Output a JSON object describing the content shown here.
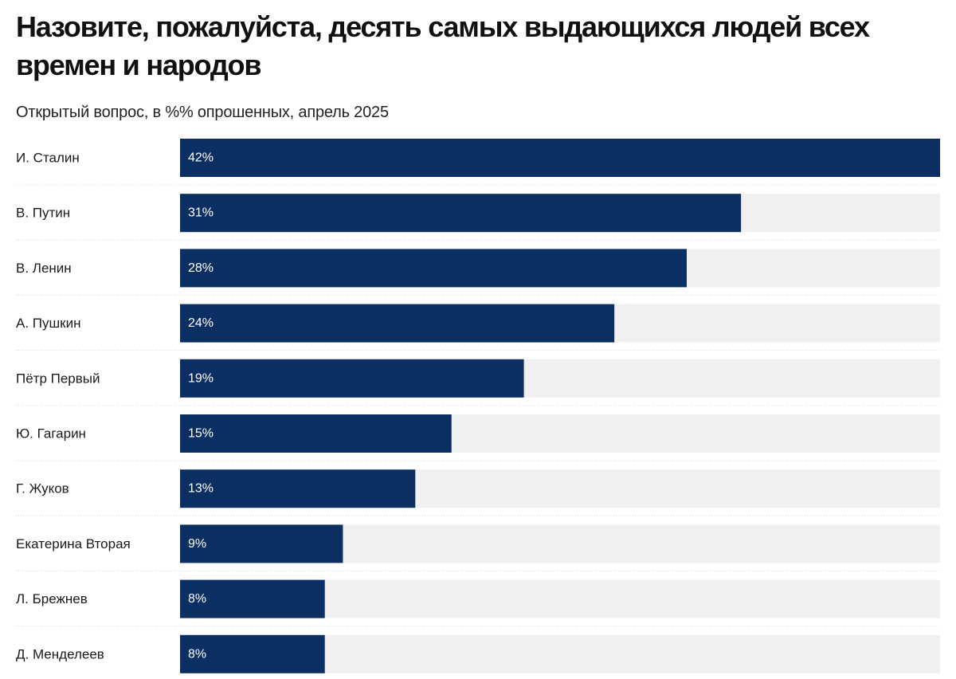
{
  "chart_data": {
    "type": "bar",
    "orientation": "horizontal",
    "title": "Назовите, пожалуйста, десять самых выдающихся людей всех времен и народов",
    "subtitle": "Открытый вопрос, в %% опрошенных, апрель 2025",
    "xlim": [
      0,
      42
    ],
    "value_suffix": "%",
    "categories": [
      "И. Сталин",
      "В. Путин",
      "В. Ленин",
      "А. Пушкин",
      "Пётр Первый",
      "Ю. Гагарин",
      "Г. Жуков",
      "Екатерина Вторая",
      "Л. Брежнев",
      "Д. Менделеев"
    ],
    "values": [
      42,
      31,
      28,
      24,
      19,
      15,
      13,
      9,
      8,
      8
    ],
    "colors": {
      "bar": "#0b2f63",
      "track": "#f0f0f0",
      "separator": "#d8d8d8",
      "bar_text": "#ffffff"
    }
  }
}
